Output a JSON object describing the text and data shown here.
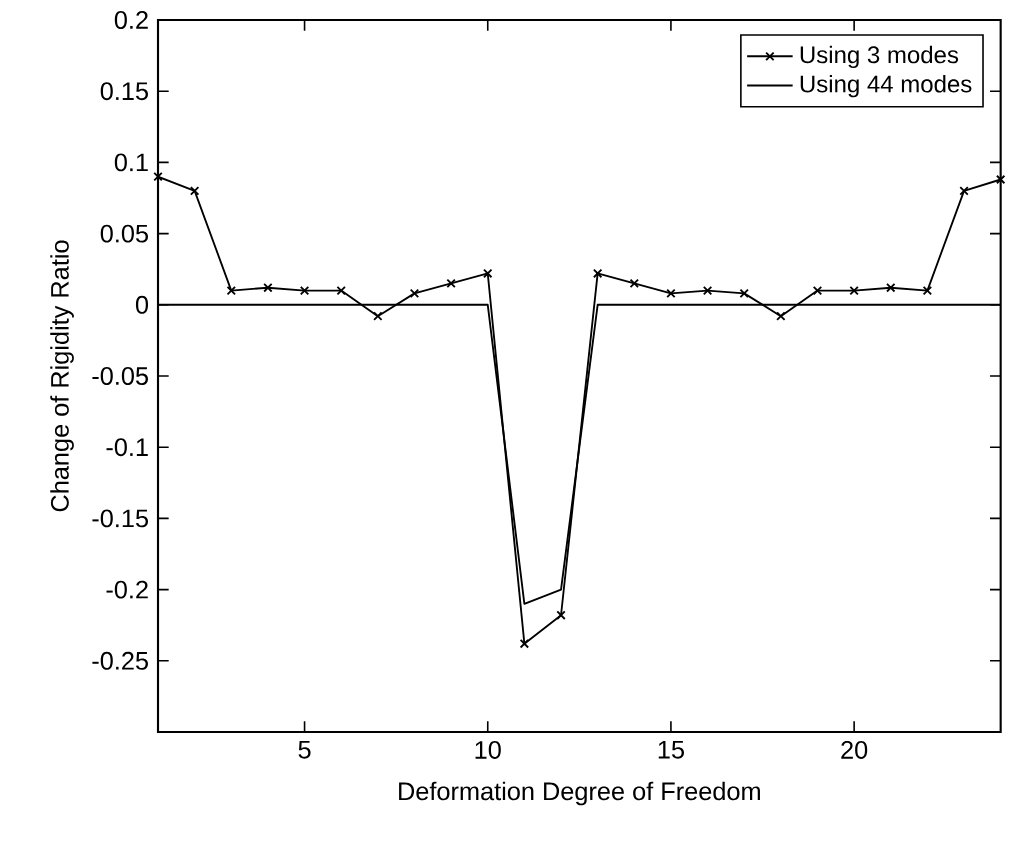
{
  "chart_data": {
    "type": "line",
    "xlabel": "Deformation Degree of Freedom",
    "ylabel": "Change of Rigidity Ratio",
    "xlim": [
      1,
      24
    ],
    "ylim": [
      -0.3,
      0.2
    ],
    "xticks": [
      5,
      10,
      15,
      20
    ],
    "yticks": [
      -0.25,
      -0.2,
      -0.15,
      -0.1,
      -0.05,
      0,
      0.05,
      0.1,
      0.15,
      0.2
    ],
    "legend": "top right",
    "grid": false,
    "series": [
      {
        "name": "Using 3 modes",
        "color": "#000000",
        "marker": "cross",
        "x": [
          1,
          2,
          3,
          4,
          5,
          6,
          7,
          8,
          9,
          10,
          11,
          12,
          13,
          14,
          15,
          16,
          17,
          18,
          19,
          20,
          21,
          22,
          23,
          24
        ],
        "values": [
          0.09,
          0.08,
          0.01,
          0.012,
          0.01,
          0.01,
          -0.008,
          0.008,
          0.015,
          0.022,
          -0.238,
          -0.218,
          0.022,
          0.015,
          0.008,
          0.01,
          0.008,
          -0.008,
          0.01,
          0.01,
          0.012,
          0.01,
          0.08,
          0.088
        ]
      },
      {
        "name": "Using 44 modes",
        "color": "#000000",
        "marker": "none",
        "x": [
          1,
          10,
          11,
          12,
          13,
          24
        ],
        "values": [
          0,
          0,
          -0.21,
          -0.2,
          0,
          0
        ]
      }
    ]
  }
}
